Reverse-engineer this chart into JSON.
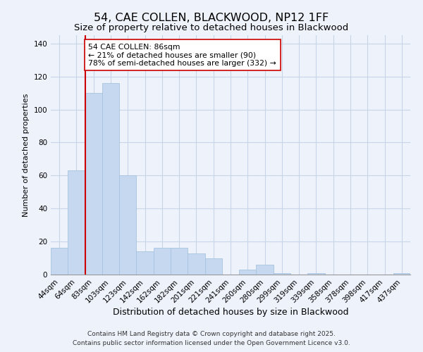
{
  "title": "54, CAE COLLEN, BLACKWOOD, NP12 1FF",
  "subtitle": "Size of property relative to detached houses in Blackwood",
  "xlabel": "Distribution of detached houses by size in Blackwood",
  "ylabel": "Number of detached properties",
  "categories": [
    "44sqm",
    "64sqm",
    "83sqm",
    "103sqm",
    "123sqm",
    "142sqm",
    "162sqm",
    "182sqm",
    "201sqm",
    "221sqm",
    "241sqm",
    "260sqm",
    "280sqm",
    "299sqm",
    "319sqm",
    "339sqm",
    "358sqm",
    "378sqm",
    "398sqm",
    "417sqm",
    "437sqm"
  ],
  "values": [
    16,
    63,
    110,
    116,
    60,
    14,
    16,
    16,
    13,
    10,
    0,
    3,
    6,
    1,
    0,
    1,
    0,
    0,
    0,
    0,
    1
  ],
  "bar_color": "#c5d8f0",
  "bar_edge_color": "#a8c4e0",
  "ylim": [
    0,
    145
  ],
  "yticks": [
    0,
    20,
    40,
    60,
    80,
    100,
    120,
    140
  ],
  "reference_line_x_label": "83sqm",
  "reference_line_color": "#cc0000",
  "annotation_title": "54 CAE COLLEN: 86sqm",
  "annotation_line1": "← 21% of detached houses are smaller (90)",
  "annotation_line2": "78% of semi-detached houses are larger (332) →",
  "bg_color": "#eef2fb",
  "grid_color": "#c8d4e8",
  "footer_line1": "Contains HM Land Registry data © Crown copyright and database right 2025.",
  "footer_line2": "Contains public sector information licensed under the Open Government Licence v3.0.",
  "title_fontsize": 11.5,
  "subtitle_fontsize": 9.5,
  "xlabel_fontsize": 9,
  "ylabel_fontsize": 8,
  "tick_fontsize": 7.5,
  "footer_fontsize": 6.5
}
